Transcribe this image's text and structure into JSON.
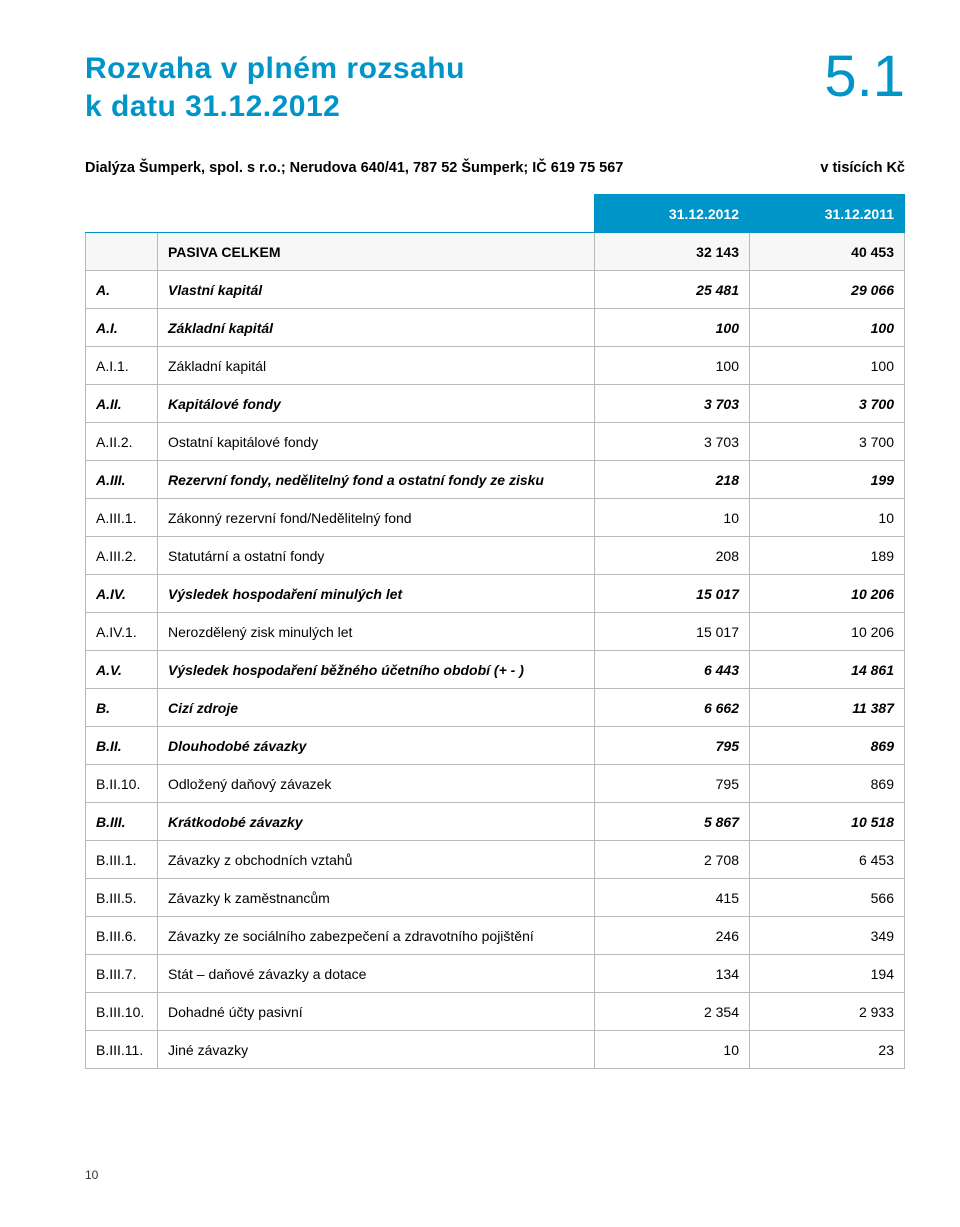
{
  "title_line1": "Rozvaha v plném rozsahu",
  "title_line2": "k datu 31.12.2012",
  "section_no": "5.1",
  "company": "Dialýza Šumperk, spol. s r.o.; Nerudova 640/41, 787 52 Šumperk; IČ 619 75 567",
  "unit": "v tisících Kč",
  "col_year1": "31.12.2012",
  "col_year2": "31.12.2011",
  "footer_page": "10",
  "rows": [
    {
      "code": "",
      "label": "PASIVA CELKEM",
      "v1": "32 143",
      "v2": "40 453",
      "cls": "total"
    },
    {
      "code": "A.",
      "label": "Vlastní kapitál",
      "v1": "25 481",
      "v2": "29 066",
      "cls": "bold-italic"
    },
    {
      "code": "A.I.",
      "label": "Základní kapitál",
      "v1": "100",
      "v2": "100",
      "cls": "bold-italic"
    },
    {
      "code": "A.I.1.",
      "label": "Základní kapitál",
      "v1": "100",
      "v2": "100",
      "cls": ""
    },
    {
      "code": "A.II.",
      "label": "Kapitálové fondy",
      "v1": "3 703",
      "v2": "3 700",
      "cls": "bold-italic"
    },
    {
      "code": "A.II.2.",
      "label": "Ostatní kapitálové fondy",
      "v1": "3 703",
      "v2": "3 700",
      "cls": ""
    },
    {
      "code": "A.III.",
      "label": "Rezervní fondy, nedělitelný fond a ostatní fondy ze zisku",
      "v1": "218",
      "v2": "199",
      "cls": "bold-italic"
    },
    {
      "code": "A.III.1.",
      "label": "Zákonný rezervní fond/Nedělitelný fond",
      "v1": "10",
      "v2": "10",
      "cls": ""
    },
    {
      "code": "A.III.2.",
      "label": "Statutární a ostatní fondy",
      "v1": "208",
      "v2": "189",
      "cls": ""
    },
    {
      "code": "A.IV.",
      "label": "Výsledek hospodaření minulých let",
      "v1": "15 017",
      "v2": "10 206",
      "cls": "bold-italic"
    },
    {
      "code": "A.IV.1.",
      "label": "Nerozdělený zisk minulých let",
      "v1": "15 017",
      "v2": "10 206",
      "cls": ""
    },
    {
      "code": "A.V.",
      "label": "Výsledek hospodaření běžného účetního období (+ - )",
      "v1": "6 443",
      "v2": "14 861",
      "cls": "bold-italic"
    },
    {
      "code": "B.",
      "label": "Cizí zdroje",
      "v1": "6 662",
      "v2": "11 387",
      "cls": "bold-italic"
    },
    {
      "code": "B.II.",
      "label": "Dlouhodobé závazky",
      "v1": "795",
      "v2": "869",
      "cls": "bold-italic"
    },
    {
      "code": "B.II.10.",
      "label": "Odložený daňový závazek",
      "v1": "795",
      "v2": "869",
      "cls": ""
    },
    {
      "code": "B.III.",
      "label": "Krátkodobé závazky",
      "v1": "5 867",
      "v2": "10 518",
      "cls": "bold-italic"
    },
    {
      "code": "B.III.1.",
      "label": "Závazky z obchodních vztahů",
      "v1": "2 708",
      "v2": "6 453",
      "cls": ""
    },
    {
      "code": "B.III.5.",
      "label": "Závazky k zaměstnancům",
      "v1": "415",
      "v2": "566",
      "cls": ""
    },
    {
      "code": "B.III.6.",
      "label": "Závazky ze sociálního zabezpečení a zdravotního pojištění",
      "v1": "246",
      "v2": "349",
      "cls": ""
    },
    {
      "code": "B.III.7.",
      "label": "Stát – daňové závazky a dotace",
      "v1": "134",
      "v2": "194",
      "cls": ""
    },
    {
      "code": "B.III.10.",
      "label": "Dohadné účty pasivní",
      "v1": "2 354",
      "v2": "2 933",
      "cls": ""
    },
    {
      "code": "B.III.11.",
      "label": "Jiné závazky",
      "v1": "10",
      "v2": "23",
      "cls": ""
    }
  ]
}
